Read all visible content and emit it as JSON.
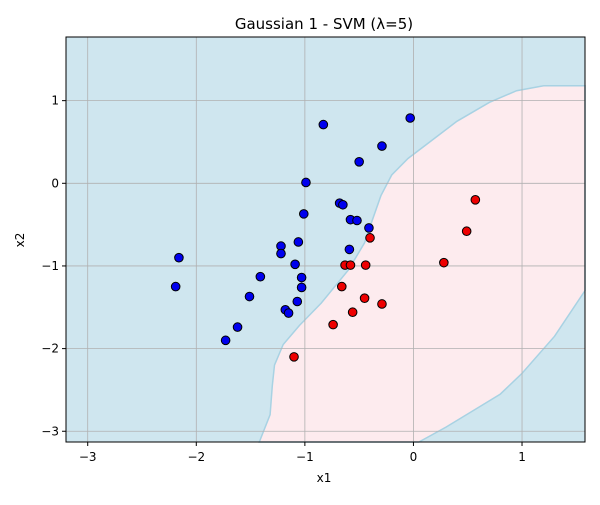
{
  "chart_data": {
    "type": "scatter",
    "title": "Gaussian 1 - SVM (λ=5)",
    "xlabel": "x1",
    "ylabel": "x2",
    "xlim": [
      -3.2,
      1.58
    ],
    "ylim": [
      -3.13,
      1.77
    ],
    "xticks": [
      -3,
      -2,
      -1,
      0,
      1
    ],
    "yticks": [
      -3,
      -2,
      -1,
      0,
      1
    ],
    "grid": true,
    "colors": {
      "region_blue": "#cfe6ef",
      "region_pink": "#fdebee",
      "boundary": "#a8d2e3",
      "point_blue": "#0000ee",
      "point_red": "#ee0000",
      "point_edge": "#000000",
      "grid": "#b0b0b0"
    },
    "series": [
      {
        "class": "blue",
        "points": [
          [
            -0.03,
            0.79
          ],
          [
            -0.83,
            0.71
          ],
          [
            -0.29,
            0.45
          ],
          [
            -0.5,
            0.26
          ],
          [
            -0.99,
            0.01
          ],
          [
            -0.68,
            -0.24
          ],
          [
            -0.65,
            -0.26
          ],
          [
            -1.01,
            -0.37
          ],
          [
            -0.58,
            -0.44
          ],
          [
            -0.52,
            -0.45
          ],
          [
            -0.41,
            -0.54
          ],
          [
            -1.22,
            -0.76
          ],
          [
            -1.06,
            -0.71
          ],
          [
            -1.22,
            -0.85
          ],
          [
            -0.59,
            -0.8
          ],
          [
            -2.16,
            -0.9
          ],
          [
            -1.09,
            -0.98
          ],
          [
            -1.41,
            -1.13
          ],
          [
            -1.03,
            -1.14
          ],
          [
            -2.19,
            -1.25
          ],
          [
            -1.03,
            -1.26
          ],
          [
            -1.51,
            -1.37
          ],
          [
            -1.07,
            -1.43
          ],
          [
            -1.18,
            -1.53
          ],
          [
            -1.15,
            -1.57
          ],
          [
            -1.62,
            -1.74
          ],
          [
            -1.73,
            -1.9
          ]
        ]
      },
      {
        "class": "red",
        "points": [
          [
            0.57,
            -0.2
          ],
          [
            0.49,
            -0.58
          ],
          [
            -0.4,
            -0.66
          ],
          [
            0.28,
            -0.96
          ],
          [
            -0.63,
            -0.99
          ],
          [
            -0.58,
            -0.99
          ],
          [
            -0.44,
            -0.99
          ],
          [
            -0.66,
            -1.25
          ],
          [
            -0.45,
            -1.39
          ],
          [
            -0.29,
            -1.46
          ],
          [
            -0.56,
            -1.56
          ],
          [
            -0.74,
            -1.71
          ],
          [
            -1.1,
            -2.1
          ]
        ]
      }
    ],
    "decision_boundary": [
      [
        -1.42,
        -3.13
      ],
      [
        -1.32,
        -2.8
      ],
      [
        -1.3,
        -2.45
      ],
      [
        -1.28,
        -2.2
      ],
      [
        -1.2,
        -1.95
      ],
      [
        -1.05,
        -1.72
      ],
      [
        -0.85,
        -1.45
      ],
      [
        -0.6,
        -1.05
      ],
      [
        -0.45,
        -0.72
      ],
      [
        -0.38,
        -0.45
      ],
      [
        -0.3,
        -0.15
      ],
      [
        -0.2,
        0.1
      ],
      [
        -0.05,
        0.3
      ],
      [
        0.15,
        0.5
      ],
      [
        0.4,
        0.75
      ],
      [
        0.7,
        0.98
      ],
      [
        0.95,
        1.12
      ],
      [
        1.2,
        1.18
      ],
      [
        1.58,
        1.18
      ],
      [
        1.58,
        -1.3
      ],
      [
        1.3,
        -1.85
      ],
      [
        1.0,
        -2.3
      ],
      [
        0.8,
        -2.55
      ],
      [
        0.55,
        -2.75
      ],
      [
        0.3,
        -2.95
      ],
      [
        0.05,
        -3.13
      ]
    ]
  }
}
